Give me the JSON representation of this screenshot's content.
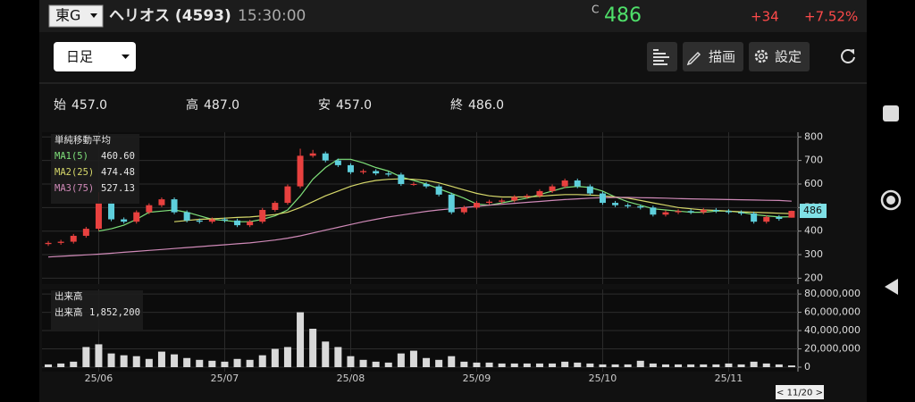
{
  "header": {
    "market": "東G",
    "name": "ヘリオス (4593)",
    "time": "15:30:00",
    "price_prefix": "C",
    "price": "486",
    "change": "+34",
    "change_pct": "+7.52%"
  },
  "toolbar": {
    "period": "日足",
    "draw_button": "描画",
    "settings_button": "設定"
  },
  "summary": [
    {
      "label": "始",
      "value": "457.0"
    },
    {
      "label": "高",
      "value": "487.0"
    },
    {
      "label": "安",
      "value": "457.0"
    },
    {
      "label": "終",
      "value": "486.0"
    }
  ],
  "cursor_date": "< 11/20 >",
  "chart_data": [
    {
      "type": "candlestick",
      "legend_title": "単純移動平均",
      "up_color": "#e8413f",
      "down_color": "#5ecfdc",
      "open": [
        345,
        350,
        355,
        380,
        410,
        520,
        450,
        440,
        480,
        510,
        535,
        480,
        445,
        440,
        450,
        445,
        425,
        440,
        490,
        520,
        590,
        720,
        730,
        700,
        680,
        650,
        655,
        645,
        640,
        600,
        600,
        590,
        555,
        480,
        500,
        520,
        525,
        530,
        545,
        550,
        570,
        590,
        615,
        590,
        560,
        520,
        510,
        505,
        500,
        470,
        480,
        485,
        480,
        490,
        485,
        480,
        475,
        440,
        460,
        457
      ],
      "high": [
        358,
        363,
        388,
        418,
        565,
        528,
        458,
        488,
        518,
        543,
        543,
        488,
        453,
        458,
        458,
        453,
        448,
        498,
        528,
        598,
        750,
        745,
        738,
        708,
        688,
        663,
        663,
        653,
        648,
        608,
        608,
        598,
        563,
        508,
        528,
        533,
        538,
        553,
        558,
        578,
        598,
        623,
        623,
        598,
        568,
        528,
        518,
        513,
        508,
        488,
        493,
        493,
        498,
        498,
        493,
        488,
        483,
        468,
        468,
        487
      ],
      "low": [
        337,
        342,
        347,
        372,
        402,
        442,
        432,
        432,
        472,
        502,
        472,
        437,
        432,
        432,
        437,
        417,
        417,
        432,
        482,
        512,
        582,
        712,
        692,
        672,
        642,
        642,
        637,
        632,
        592,
        592,
        582,
        547,
        472,
        472,
        492,
        512,
        517,
        522,
        537,
        542,
        562,
        582,
        582,
        552,
        512,
        502,
        497,
        492,
        462,
        462,
        472,
        472,
        472,
        477,
        472,
        467,
        432,
        432,
        444,
        457
      ],
      "close": [
        350,
        355,
        380,
        410,
        520,
        450,
        440,
        480,
        510,
        535,
        480,
        445,
        440,
        450,
        445,
        425,
        440,
        490,
        520,
        590,
        720,
        730,
        700,
        680,
        650,
        655,
        645,
        640,
        600,
        600,
        590,
        555,
        480,
        500,
        520,
        525,
        530,
        545,
        550,
        570,
        590,
        615,
        590,
        560,
        520,
        510,
        505,
        500,
        470,
        480,
        485,
        480,
        490,
        485,
        480,
        475,
        440,
        460,
        452,
        486
      ],
      "series": [
        {
          "name": "MA1(5)",
          "color": "#7fe07a",
          "current": "460.60",
          "values": [
            null,
            null,
            null,
            null,
            400,
            410,
            425,
            450,
            480,
            485,
            490,
            480,
            465,
            450,
            445,
            440,
            440,
            450,
            465,
            490,
            550,
            620,
            670,
            705,
            705,
            690,
            670,
            655,
            630,
            615,
            600,
            580,
            560,
            540,
            515,
            510,
            520,
            530,
            540,
            555,
            570,
            585,
            590,
            585,
            570,
            545,
            525,
            510,
            495,
            490,
            485,
            480,
            480,
            485,
            485,
            480,
            470,
            465,
            460,
            460.6
          ]
        },
        {
          "name": "MA2(25)",
          "color": "#d6d86a",
          "current": "474.48",
          "values": [
            null,
            null,
            null,
            null,
            null,
            null,
            null,
            null,
            null,
            null,
            440,
            445,
            450,
            452,
            455,
            458,
            460,
            465,
            470,
            480,
            500,
            525,
            550,
            570,
            590,
            605,
            615,
            620,
            622,
            620,
            615,
            605,
            590,
            575,
            560,
            550,
            545,
            545,
            545,
            548,
            552,
            555,
            555,
            553,
            550,
            545,
            540,
            530,
            520,
            510,
            500,
            495,
            490,
            488,
            485,
            482,
            480,
            478,
            476,
            474.48
          ]
        },
        {
          "name": "MA3(75)",
          "color": "#d08ab8",
          "current": "527.13",
          "values": [
            290,
            293,
            296,
            299,
            302,
            306,
            310,
            314,
            318,
            322,
            326,
            330,
            334,
            338,
            342,
            346,
            350,
            356,
            362,
            370,
            380,
            392,
            404,
            416,
            428,
            440,
            450,
            460,
            468,
            476,
            484,
            490,
            495,
            500,
            505,
            510,
            514,
            518,
            522,
            526,
            530,
            534,
            537,
            540,
            542,
            543,
            543,
            542,
            541,
            540,
            538,
            537,
            536,
            535,
            534,
            533,
            532,
            531,
            530,
            527.13
          ]
        }
      ],
      "ylim": [
        175,
        820
      ],
      "yticks": [
        200,
        300,
        400,
        500,
        600,
        700,
        800
      ],
      "grid": true
    },
    {
      "type": "bar",
      "title": "出来高",
      "legend_label": "出来高",
      "current": "1,852,200",
      "color": "#d9d9d9",
      "categories": [
        null,
        null,
        null,
        null,
        "25/06",
        null,
        null,
        null,
        null,
        null,
        null,
        null,
        null,
        null,
        "25/07",
        null,
        null,
        null,
        null,
        null,
        null,
        null,
        null,
        null,
        "25/08",
        null,
        null,
        null,
        null,
        null,
        null,
        null,
        null,
        null,
        "25/09",
        null,
        null,
        null,
        null,
        null,
        null,
        null,
        null,
        null,
        "25/10",
        null,
        null,
        null,
        null,
        null,
        null,
        null,
        null,
        null,
        "25/11",
        null,
        null,
        null,
        null,
        null
      ],
      "values": [
        3000000,
        4000000,
        6000000,
        22000000,
        25000000,
        15000000,
        13000000,
        12000000,
        9000000,
        17000000,
        14000000,
        10000000,
        8000000,
        7000000,
        6000000,
        9000000,
        8000000,
        13000000,
        20000000,
        22000000,
        60000000,
        42000000,
        28000000,
        22000000,
        12000000,
        8000000,
        6000000,
        5000000,
        15000000,
        18000000,
        10000000,
        8000000,
        12000000,
        6000000,
        5000000,
        5000000,
        4000000,
        4000000,
        4000000,
        4000000,
        4000000,
        6000000,
        5000000,
        4000000,
        3000000,
        3000000,
        3000000,
        7000000,
        4000000,
        3000000,
        3000000,
        3000000,
        3000000,
        3000000,
        4000000,
        3000000,
        6000000,
        4000000,
        3000000,
        1852200
      ],
      "ylim": [
        0,
        85000000
      ],
      "yticks": [
        0,
        {
          "value": 20000000,
          "label": "20,000,000"
        },
        {
          "value": 40000000,
          "label": "40,000,000"
        },
        {
          "value": 60000000,
          "label": "60,000,000"
        },
        {
          "value": 80000000,
          "label": "80,000,000"
        }
      ],
      "grid": true
    }
  ]
}
